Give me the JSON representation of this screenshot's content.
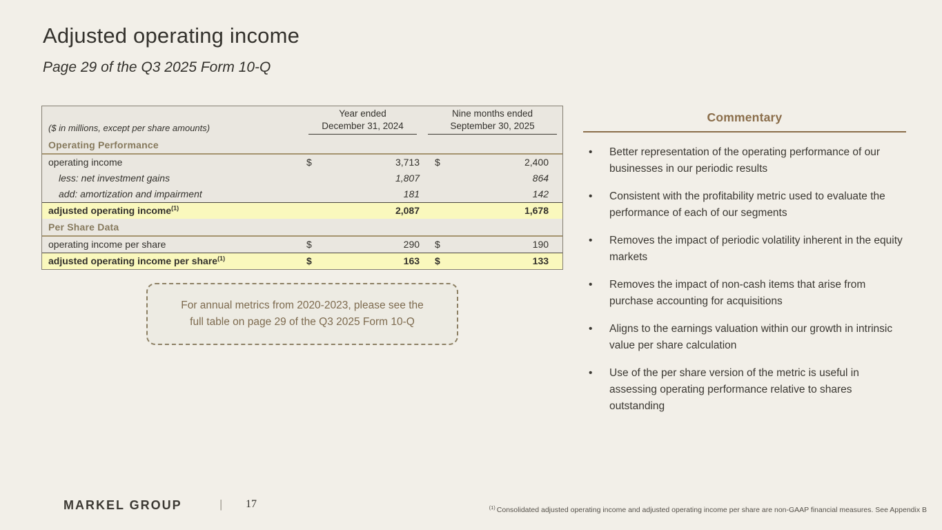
{
  "slide": {
    "title": "Adjusted operating income",
    "subtitle": "Page 29 of the Q3 2025 Form 10-Q"
  },
  "table": {
    "caption": "($ in millions, except per share amounts)",
    "columns": [
      {
        "line1": "Year ended",
        "line2": "December 31, 2024"
      },
      {
        "line1": "Nine months ended",
        "line2": "September 30, 2025"
      }
    ],
    "rows": [
      {
        "type": "section",
        "label": "Operating Performance"
      },
      {
        "type": "data",
        "label": "operating income",
        "d1": "$",
        "v1": "3,713",
        "d2": "$",
        "v2": "2,400"
      },
      {
        "type": "italic",
        "label": "less: net investment gains",
        "d1": "",
        "v1": "1,807",
        "d2": "",
        "v2": "864"
      },
      {
        "type": "italic",
        "label": "add: amortization and impairment",
        "d1": "",
        "v1": "181",
        "d2": "",
        "v2": "142"
      },
      {
        "type": "highlight",
        "label": "adjusted operating income",
        "sup": "(1)",
        "d1": "",
        "v1": "2,087",
        "d2": "",
        "v2": "1,678"
      },
      {
        "type": "section",
        "label": "Per Share Data"
      },
      {
        "type": "data",
        "label": "operating income per share",
        "d1": "$",
        "v1": "290",
        "d2": "$",
        "v2": "190"
      },
      {
        "type": "highlight",
        "label": "adjusted operating income per share",
        "sup": "(1)",
        "d1": "$",
        "v1": "163",
        "d2": "$",
        "v2": "133"
      }
    ]
  },
  "note_box": {
    "lines": [
      "For annual metrics from 2020-2023, please see the",
      "full table on page 29 of the Q3 2025 Form 10-Q"
    ]
  },
  "commentary": {
    "title": "Commentary",
    "bullets": [
      "Better representation of the operating performance of our businesses in our periodic results",
      "Consistent with the profitability metric used to evaluate the performance of each of our segments",
      "Removes the impact of periodic volatility inherent in the equity markets",
      "Removes the impact of non-cash items that arise from purchase accounting for acquisitions",
      "Aligns to the earnings valuation within our growth in intrinsic value per share calculation",
      "Use of the per share version of the metric is useful in assessing operating performance relative to shares outstanding"
    ]
  },
  "footer": {
    "logo": "MARKEL GROUP",
    "separator": "|",
    "page_number": "17",
    "footnote_sup": "(1)",
    "footnote": "Consolidated adjusted operating income and adjusted operating income per share are non-GAAP financial measures. See Appendix B"
  },
  "colors": {
    "background": "#f2efe8",
    "table_background": "#eae7e0",
    "highlight_yellow": "#faf8bd",
    "accent_brown": "#8a6d4a",
    "section_brown": "#86795c"
  }
}
